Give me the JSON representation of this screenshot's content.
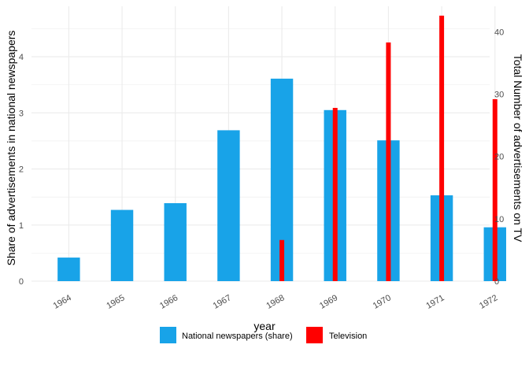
{
  "chart_data": {
    "type": "bar",
    "categories": [
      "1964",
      "1965",
      "1966",
      "1967",
      "1968",
      "1969",
      "1970",
      "1971",
      "1972"
    ],
    "xlabel": "year",
    "ylabel_left": "Share of advertisements in national newspapers",
    "ylabel_right": "Total Number of advertisements on TV",
    "ylim_left": [
      0,
      4.9
    ],
    "yticks_left": [
      "0",
      "1",
      "2",
      "3",
      "4"
    ],
    "ylim_right": [
      0,
      44.1
    ],
    "yticks_right": [
      "0",
      "10",
      "20",
      "30",
      "40"
    ],
    "grid": true,
    "legend_position": "bottom",
    "series": [
      {
        "name": "National newspapers (share)",
        "axis": "left",
        "color": "#18A3E8",
        "values": [
          0.42,
          1.27,
          1.39,
          2.69,
          3.61,
          3.05,
          2.51,
          1.53,
          0.96
        ]
      },
      {
        "name": "Television",
        "axis": "right",
        "color": "#FF0000",
        "values": [
          null,
          null,
          null,
          null,
          6.6,
          27.8,
          38.3,
          42.6,
          29.2
        ]
      }
    ]
  }
}
